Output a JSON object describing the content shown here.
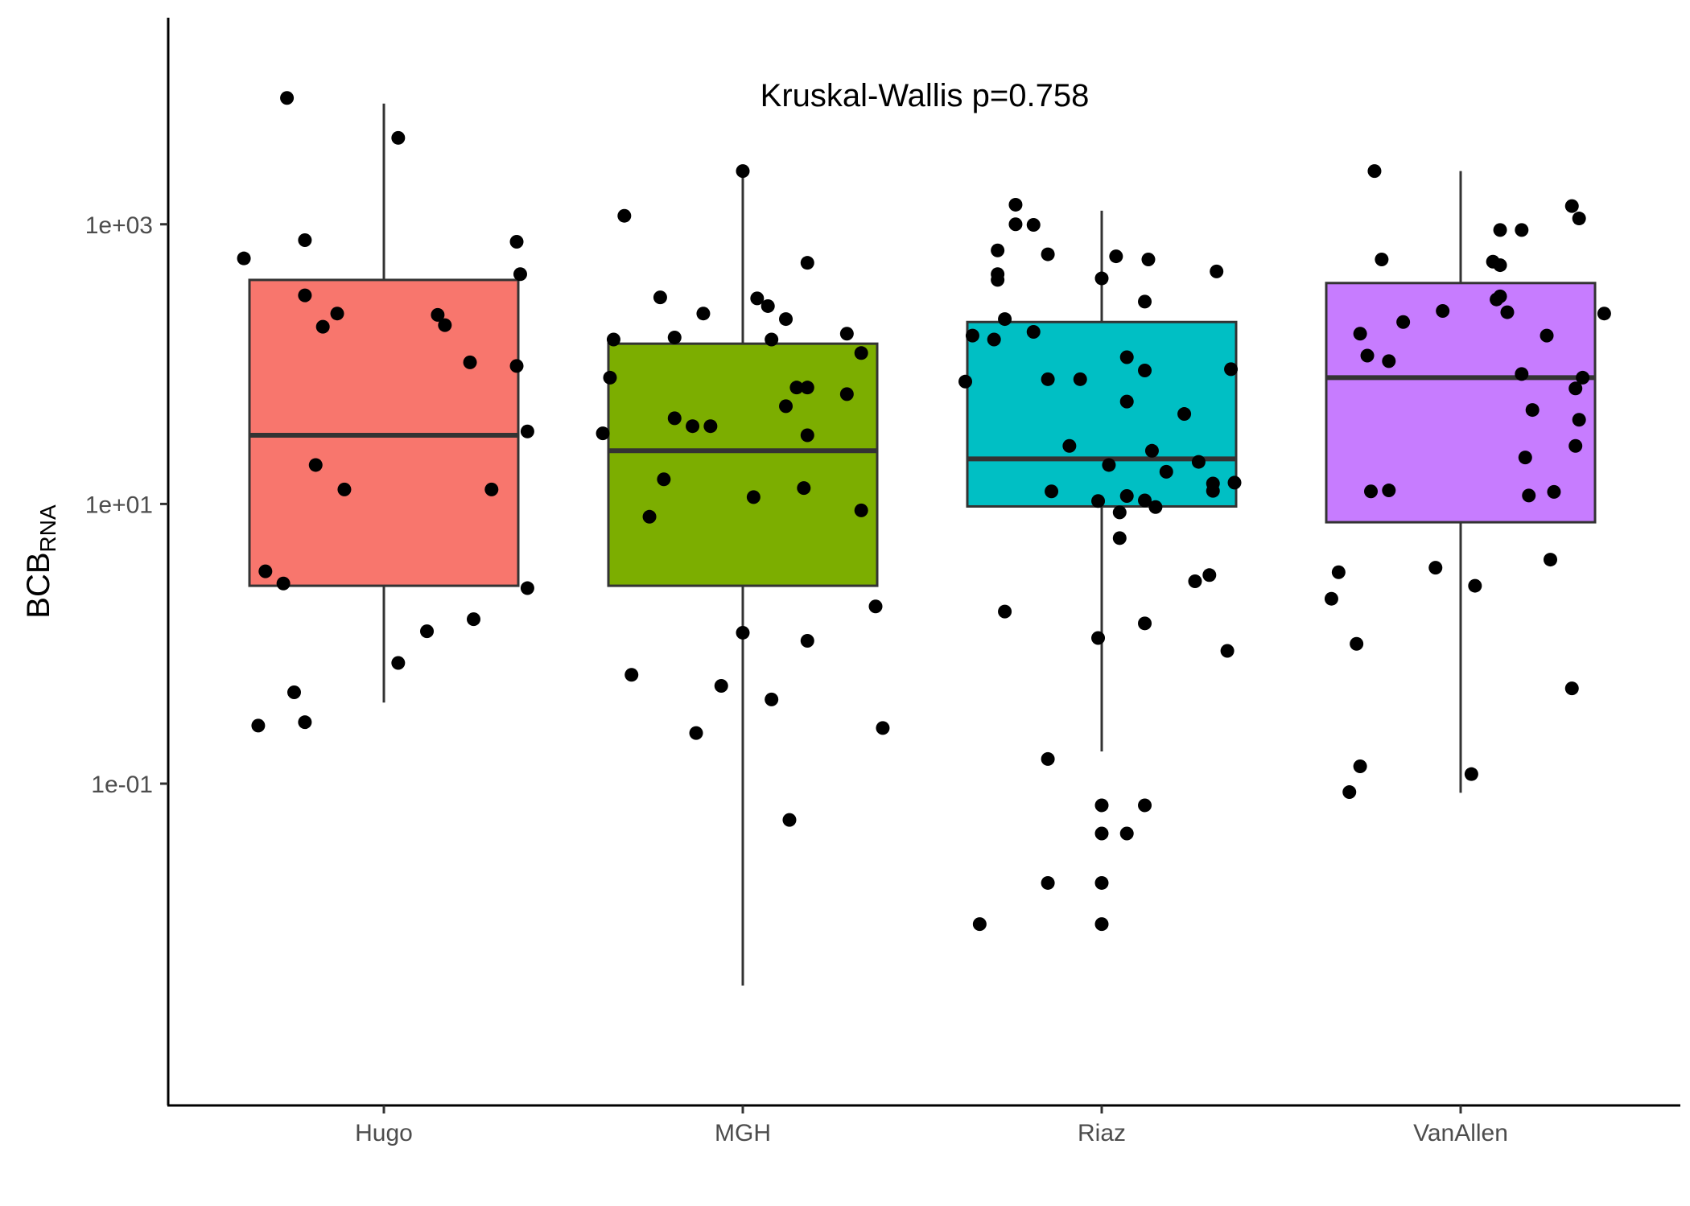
{
  "chart_data": {
    "type": "boxplot",
    "title": "",
    "annotation": "Kruskal-Wallis p=0.758",
    "xlabel": "",
    "ylabel": {
      "main": "BCB",
      "subscript": "RNA"
    },
    "y_scale": "log10",
    "ylim": [
      0.0005,
      30000
    ],
    "yticks": [
      {
        "value": 0.1,
        "label": "1e-01"
      },
      {
        "value": 10,
        "label": "1e+01"
      },
      {
        "value": 1000,
        "label": "1e+03"
      }
    ],
    "grid": false,
    "legend": "none",
    "categories": [
      "Hugo",
      "MGH",
      "Riaz",
      "VanAllen"
    ],
    "colors": [
      "#F8766D",
      "#7CAE00",
      "#00BFC4",
      "#C77CFF"
    ],
    "boxes": [
      {
        "name": "Hugo",
        "whisker_low": 0.38,
        "q1": 2.6,
        "median": 31,
        "q3": 400,
        "whisker_high": 7300
      },
      {
        "name": "MGH",
        "whisker_low": 0.0036,
        "q1": 2.6,
        "median": 24,
        "q3": 140,
        "whisker_high": 2400
      },
      {
        "name": "Riaz",
        "whisker_low": 0.17,
        "q1": 9.6,
        "median": 21,
        "q3": 200,
        "whisker_high": 1250
      },
      {
        "name": "VanAllen",
        "whisker_low": 0.086,
        "q1": 7.4,
        "median": 80,
        "q3": 380,
        "whisker_high": 2400
      }
    ],
    "points": [
      [
        {
          "dx": -0.39,
          "y": 570
        },
        {
          "dx": -0.27,
          "y": 8000
        },
        {
          "dx": 0.04,
          "y": 4150
        },
        {
          "dx": -0.22,
          "y": 770
        },
        {
          "dx": -0.22,
          "y": 310
        },
        {
          "dx": -0.13,
          "y": 230
        },
        {
          "dx": -0.17,
          "y": 185
        },
        {
          "dx": 0.15,
          "y": 225
        },
        {
          "dx": 0.17,
          "y": 190
        },
        {
          "dx": 0.37,
          "y": 750
        },
        {
          "dx": 0.38,
          "y": 440
        },
        {
          "dx": 0.24,
          "y": 103
        },
        {
          "dx": 0.37,
          "y": 97
        },
        {
          "dx": 0.4,
          "y": 33
        },
        {
          "dx": -0.19,
          "y": 19
        },
        {
          "dx": -0.11,
          "y": 12.7
        },
        {
          "dx": 0.3,
          "y": 12.7
        },
        {
          "dx": -0.33,
          "y": 3.3
        },
        {
          "dx": -0.28,
          "y": 2.7
        },
        {
          "dx": 0.4,
          "y": 2.5
        },
        {
          "dx": 0.25,
          "y": 1.5
        },
        {
          "dx": 0.12,
          "y": 1.23
        },
        {
          "dx": 0.04,
          "y": 0.73
        },
        {
          "dx": -0.25,
          "y": 0.45
        },
        {
          "dx": -0.35,
          "y": 0.26
        },
        {
          "dx": -0.22,
          "y": 0.275
        }
      ],
      [
        {
          "dx": -0.33,
          "y": 1150
        },
        {
          "dx": -0.23,
          "y": 300
        },
        {
          "dx": -0.36,
          "y": 150
        },
        {
          "dx": -0.37,
          "y": 80
        },
        {
          "dx": -0.39,
          "y": 32
        },
        {
          "dx": -0.19,
          "y": 155
        },
        {
          "dx": -0.11,
          "y": 230
        },
        {
          "dx": -0.19,
          "y": 41
        },
        {
          "dx": -0.14,
          "y": 36
        },
        {
          "dx": -0.09,
          "y": 36
        },
        {
          "dx": 0.0,
          "y": 2400
        },
        {
          "dx": 0.04,
          "y": 295
        },
        {
          "dx": 0.07,
          "y": 260
        },
        {
          "dx": 0.08,
          "y": 150
        },
        {
          "dx": 0.12,
          "y": 210
        },
        {
          "dx": 0.18,
          "y": 530
        },
        {
          "dx": 0.12,
          "y": 50
        },
        {
          "dx": 0.15,
          "y": 68
        },
        {
          "dx": 0.18,
          "y": 68
        },
        {
          "dx": 0.29,
          "y": 165
        },
        {
          "dx": 0.33,
          "y": 120
        },
        {
          "dx": 0.29,
          "y": 61
        },
        {
          "dx": 0.18,
          "y": 31
        },
        {
          "dx": -0.22,
          "y": 15
        },
        {
          "dx": 0.03,
          "y": 11.2
        },
        {
          "dx": 0.17,
          "y": 13
        },
        {
          "dx": 0.33,
          "y": 9
        },
        {
          "dx": -0.26,
          "y": 8.1
        },
        {
          "dx": 0.37,
          "y": 1.85
        },
        {
          "dx": 0.0,
          "y": 1.2
        },
        {
          "dx": 0.18,
          "y": 1.05
        },
        {
          "dx": -0.31,
          "y": 0.6
        },
        {
          "dx": -0.06,
          "y": 0.5
        },
        {
          "dx": 0.08,
          "y": 0.4
        },
        {
          "dx": -0.13,
          "y": 0.23
        },
        {
          "dx": 0.39,
          "y": 0.25
        },
        {
          "dx": 0.13,
          "y": 0.055
        }
      ],
      [
        {
          "dx": -0.24,
          "y": 1380
        },
        {
          "dx": -0.24,
          "y": 1000
        },
        {
          "dx": -0.19,
          "y": 990
        },
        {
          "dx": -0.29,
          "y": 650
        },
        {
          "dx": -0.29,
          "y": 440
        },
        {
          "dx": -0.29,
          "y": 400
        },
        {
          "dx": -0.15,
          "y": 610
        },
        {
          "dx": 0.04,
          "y": 590
        },
        {
          "dx": 0.13,
          "y": 560
        },
        {
          "dx": 0.32,
          "y": 460
        },
        {
          "dx": 0.0,
          "y": 410
        },
        {
          "dx": 0.12,
          "y": 280
        },
        {
          "dx": -0.27,
          "y": 210
        },
        {
          "dx": -0.19,
          "y": 170
        },
        {
          "dx": -0.36,
          "y": 160
        },
        {
          "dx": -0.3,
          "y": 150
        },
        {
          "dx": -0.38,
          "y": 75
        },
        {
          "dx": -0.15,
          "y": 78
        },
        {
          "dx": -0.06,
          "y": 78
        },
        {
          "dx": 0.07,
          "y": 112
        },
        {
          "dx": 0.12,
          "y": 90
        },
        {
          "dx": 0.36,
          "y": 92
        },
        {
          "dx": 0.07,
          "y": 54
        },
        {
          "dx": 0.23,
          "y": 44
        },
        {
          "dx": -0.09,
          "y": 26
        },
        {
          "dx": 0.14,
          "y": 24
        },
        {
          "dx": 0.27,
          "y": 20
        },
        {
          "dx": 0.02,
          "y": 19
        },
        {
          "dx": 0.18,
          "y": 17
        },
        {
          "dx": 0.31,
          "y": 14
        },
        {
          "dx": 0.37,
          "y": 14.2
        },
        {
          "dx": -0.14,
          "y": 12.3
        },
        {
          "dx": -0.01,
          "y": 10.5
        },
        {
          "dx": 0.07,
          "y": 11.4
        },
        {
          "dx": 0.12,
          "y": 10.6
        },
        {
          "dx": 0.15,
          "y": 9.5
        },
        {
          "dx": 0.31,
          "y": 12.4
        },
        {
          "dx": 0.05,
          "y": 8.7
        },
        {
          "dx": 0.05,
          "y": 5.7
        },
        {
          "dx": 0.26,
          "y": 2.8
        },
        {
          "dx": 0.3,
          "y": 3.1
        },
        {
          "dx": 0.12,
          "y": 1.4
        },
        {
          "dx": -0.27,
          "y": 1.7
        },
        {
          "dx": -0.01,
          "y": 1.1
        },
        {
          "dx": 0.35,
          "y": 0.89
        },
        {
          "dx": -0.15,
          "y": 0.15
        },
        {
          "dx": 0.0,
          "y": 0.07
        },
        {
          "dx": 0.12,
          "y": 0.07
        },
        {
          "dx": 0.0,
          "y": 0.044
        },
        {
          "dx": 0.07,
          "y": 0.044
        },
        {
          "dx": -0.15,
          "y": 0.0195
        },
        {
          "dx": 0.0,
          "y": 0.0195
        },
        {
          "dx": -0.34,
          "y": 0.0099
        },
        {
          "dx": 0.0,
          "y": 0.0099
        }
      ],
      [
        {
          "dx": -0.24,
          "y": 2400
        },
        {
          "dx": -0.22,
          "y": 560
        },
        {
          "dx": -0.16,
          "y": 200
        },
        {
          "dx": -0.28,
          "y": 165
        },
        {
          "dx": -0.26,
          "y": 115
        },
        {
          "dx": -0.2,
          "y": 105
        },
        {
          "dx": -0.05,
          "y": 240
        },
        {
          "dx": 0.11,
          "y": 910
        },
        {
          "dx": 0.17,
          "y": 910
        },
        {
          "dx": 0.31,
          "y": 1350
        },
        {
          "dx": 0.33,
          "y": 1100
        },
        {
          "dx": 0.09,
          "y": 540
        },
        {
          "dx": 0.11,
          "y": 510
        },
        {
          "dx": 0.11,
          "y": 305
        },
        {
          "dx": 0.1,
          "y": 290
        },
        {
          "dx": 0.13,
          "y": 235
        },
        {
          "dx": 0.4,
          "y": 230
        },
        {
          "dx": 0.24,
          "y": 160
        },
        {
          "dx": 0.17,
          "y": 85
        },
        {
          "dx": 0.34,
          "y": 80
        },
        {
          "dx": 0.32,
          "y": 67
        },
        {
          "dx": 0.2,
          "y": 47
        },
        {
          "dx": 0.33,
          "y": 40
        },
        {
          "dx": 0.32,
          "y": 26
        },
        {
          "dx": 0.18,
          "y": 21.5
        },
        {
          "dx": -0.25,
          "y": 12.3
        },
        {
          "dx": -0.2,
          "y": 12.5
        },
        {
          "dx": 0.19,
          "y": 11.5
        },
        {
          "dx": 0.26,
          "y": 12.2
        },
        {
          "dx": -0.07,
          "y": 3.5
        },
        {
          "dx": 0.25,
          "y": 4.0
        },
        {
          "dx": -0.34,
          "y": 3.25
        },
        {
          "dx": 0.04,
          "y": 2.6
        },
        {
          "dx": -0.36,
          "y": 2.1
        },
        {
          "dx": -0.29,
          "y": 1.0
        },
        {
          "dx": 0.31,
          "y": 0.48
        },
        {
          "dx": -0.28,
          "y": 0.133
        },
        {
          "dx": 0.03,
          "y": 0.117
        },
        {
          "dx": -0.31,
          "y": 0.087
        }
      ]
    ]
  }
}
